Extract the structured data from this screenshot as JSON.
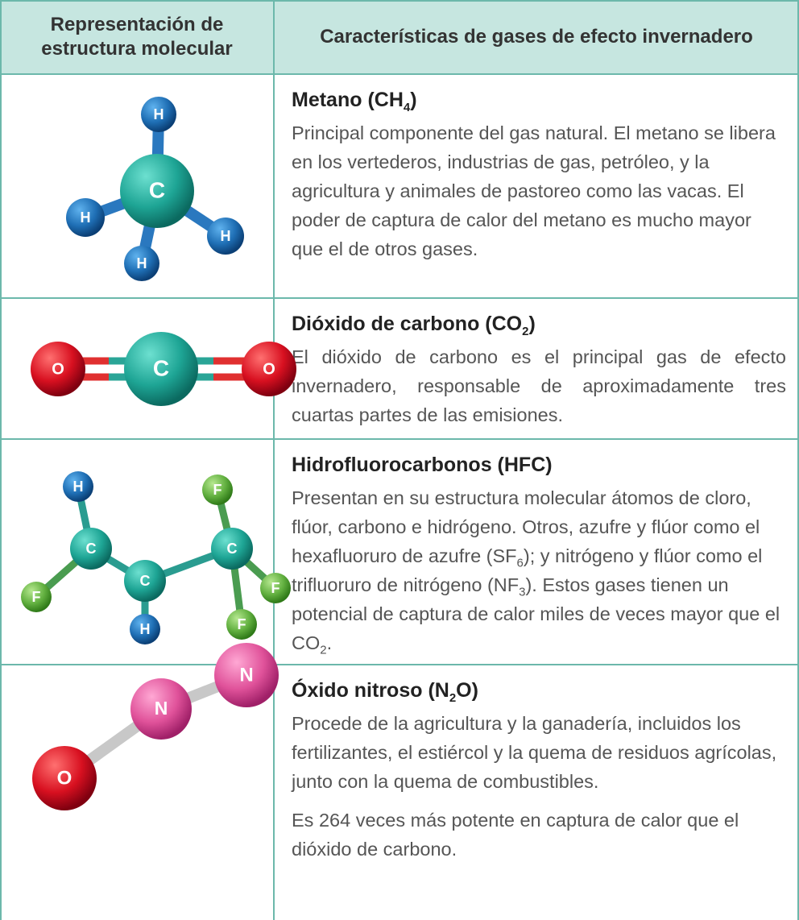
{
  "table": {
    "headers": [
      "Representación de estructura molecular",
      "Características de gases de efecto invernadero"
    ],
    "rows": [
      {
        "atoms": [
          "H",
          "C",
          "H",
          "H",
          "H"
        ],
        "title": [
          "Metano (CH",
          "4",
          ")"
        ],
        "paragraphs": [
          [
            "Principal componente del gas natural. El metano se libera en los vertederos, industrias de gas, petróleo, y la agricultura y animales de pastoreo como las vacas. El poder de captura de calor del metano es mucho mayor que el de otros gases."
          ]
        ]
      },
      {
        "atoms": [
          "O",
          "C",
          "O"
        ],
        "title": [
          "Dióxido de carbono (CO",
          "2",
          ")"
        ],
        "paragraphs": [
          [
            "El dióxido de carbono es el principal gas de efecto invernadero, responsable de aproximadamente tres cuartas partes de las emisiones."
          ]
        ]
      },
      {
        "atoms": [
          "H",
          "C",
          "F",
          "C",
          "H",
          "C",
          "F",
          "F",
          "F"
        ],
        "title": [
          "Hidrofluorocarbonos (HFC)"
        ],
        "paragraphs": [
          [
            "Presentan en su estructura molecular átomos de cloro, flúor, carbono e hidrógeno. Otros, azufre y flúor como el hexafluoruro de azufre (SF",
            "6",
            "); y nitrógeno y flúor como el trifluoruro de nitrógeno (NF",
            "3",
            "). Estos gases tienen un potencial de captura de calor miles de veces mayor que el CO",
            "2",
            "."
          ]
        ]
      },
      {
        "atoms": [
          "O",
          "N",
          "N"
        ],
        "title": [
          "Óxido nitroso (N",
          "2",
          "O)"
        ],
        "paragraphs": [
          [
            "Procede de la agricultura y la ganadería, incluidos los fertilizantes, el estiércol y la quema de residuos agrícolas, junto con la quema de combustibles."
          ],
          [
            "Es 264 veces más potente en captura de calor que el dióxido de carbono."
          ]
        ]
      }
    ]
  }
}
